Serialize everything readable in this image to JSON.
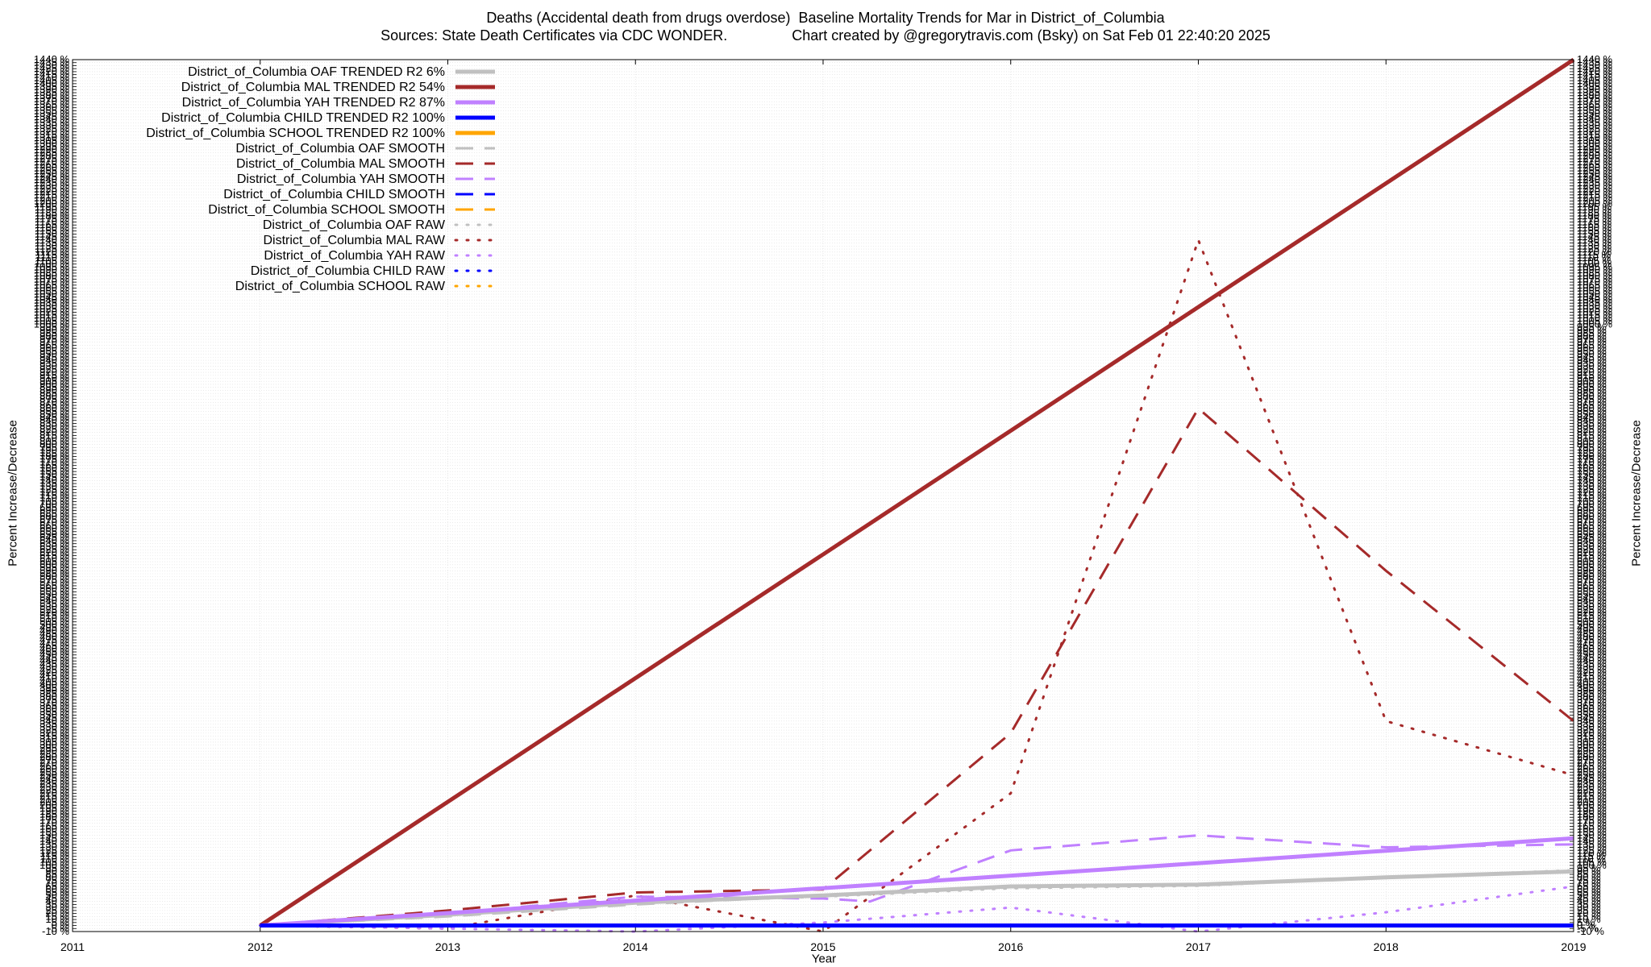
{
  "chart_data": {
    "type": "line",
    "title": "Deaths (Accidental death from drugs overdose)  Baseline Mortality Trends for Mar in District_of_Columbia",
    "subtitle": "Sources: State Death Certificates via CDC WONDER.                Chart created by @gregorytravis.com (Bsky) on Sat Feb 01 22:40:20 2025",
    "xlabel": "Year",
    "ylabel": "Percent Increase/Decrease",
    "xlim": [
      2011,
      2019
    ],
    "ylim": [
      -10,
      1440
    ],
    "ytick_step": 5,
    "ytick_suffix": " %",
    "x_ticks": [
      "2011",
      "2012",
      "2013",
      "2014",
      "2015",
      "2016",
      "2017",
      "2018",
      "2019"
    ],
    "grid": true,
    "legend_position": "top-left",
    "series": [
      {
        "name": "District_of_Columbia OAF TRENDED R2  6%",
        "style": "solid",
        "color": "#c0c0c0",
        "x": [
          2012,
          2013,
          2014,
          2015,
          2016,
          2017,
          2018,
          2019
        ],
        "y": [
          0,
          18,
          38,
          50,
          65,
          68,
          80,
          90
        ]
      },
      {
        "name": "District_of_Columbia MAL TRENDED R2  54%",
        "style": "solid",
        "color": "#a52a2a",
        "x": [
          2012,
          2019
        ],
        "y": [
          0,
          1440
        ]
      },
      {
        "name": "District_of_Columbia YAH TRENDED R2  87%",
        "style": "solid",
        "color": "#c080ff",
        "x": [
          2012,
          2019
        ],
        "y": [
          0,
          145
        ]
      },
      {
        "name": "District_of_Columbia CHILD TRENDED R2 100%",
        "style": "solid",
        "color": "#0000ff",
        "x": [
          2012,
          2019
        ],
        "y": [
          0,
          0
        ]
      },
      {
        "name": "District_of_Columbia SCHOOL TRENDED R2 100%",
        "style": "solid",
        "color": "#ffa500",
        "x": [],
        "y": []
      },
      {
        "name": "District_of_Columbia OAF SMOOTH",
        "style": "dashed",
        "color": "#c0c0c0",
        "x": [
          2012,
          2013,
          2014,
          2015,
          2016,
          2017,
          2018,
          2019
        ],
        "y": [
          0,
          15,
          35,
          50,
          65,
          68,
          80,
          90
        ]
      },
      {
        "name": "District_of_Columbia MAL SMOOTH",
        "style": "dashed",
        "color": "#a52a2a",
        "x": [
          2012,
          2013,
          2014,
          2015,
          2016,
          2017,
          2018,
          2019
        ],
        "y": [
          0,
          25,
          55,
          60,
          320,
          860,
          590,
          340
        ]
      },
      {
        "name": "District_of_Columbia YAH SMOOTH",
        "style": "dashed",
        "color": "#c080ff",
        "x": [
          2012,
          2013,
          2014,
          2015,
          2015.25,
          2016,
          2017,
          2018,
          2019
        ],
        "y": [
          0,
          20,
          48,
          45,
          40,
          125,
          150,
          130,
          135
        ]
      },
      {
        "name": "District_of_Columbia CHILD SMOOTH",
        "style": "dashed",
        "color": "#0000ff",
        "x": [
          2012,
          2019
        ],
        "y": [
          0,
          0
        ]
      },
      {
        "name": "District_of_Columbia SCHOOL SMOOTH",
        "style": "dashed",
        "color": "#ffa500",
        "x": [],
        "y": []
      },
      {
        "name": "District_of_Columbia OAF RAW",
        "style": "dotted",
        "color": "#c0c0c0",
        "x": [
          2012,
          2013,
          2014,
          2015,
          2016,
          2017,
          2018,
          2019
        ],
        "y": [
          0,
          18,
          38,
          48,
          62,
          66,
          80,
          92
        ]
      },
      {
        "name": "District_of_Columbia MAL RAW",
        "style": "dotted",
        "color": "#a52a2a",
        "x": [
          2012,
          2013,
          2014,
          2015,
          2016,
          2017,
          2018,
          2019
        ],
        "y": [
          0,
          -5,
          50,
          -10,
          220,
          1140,
          340,
          250
        ]
      },
      {
        "name": "District_of_Columbia YAH RAW",
        "style": "dotted",
        "color": "#c080ff",
        "x": [
          2012,
          2013,
          2014,
          2015,
          2016,
          2017,
          2018,
          2019
        ],
        "y": [
          0,
          -5,
          -10,
          5,
          30,
          -10,
          22,
          65
        ]
      },
      {
        "name": "District_of_Columbia CHILD RAW",
        "style": "dotted",
        "color": "#0000ff",
        "x": [
          2012,
          2019
        ],
        "y": [
          0,
          0
        ]
      },
      {
        "name": "District_of_Columbia SCHOOL RAW",
        "style": "dotted",
        "color": "#ffa500",
        "x": [],
        "y": []
      }
    ]
  }
}
